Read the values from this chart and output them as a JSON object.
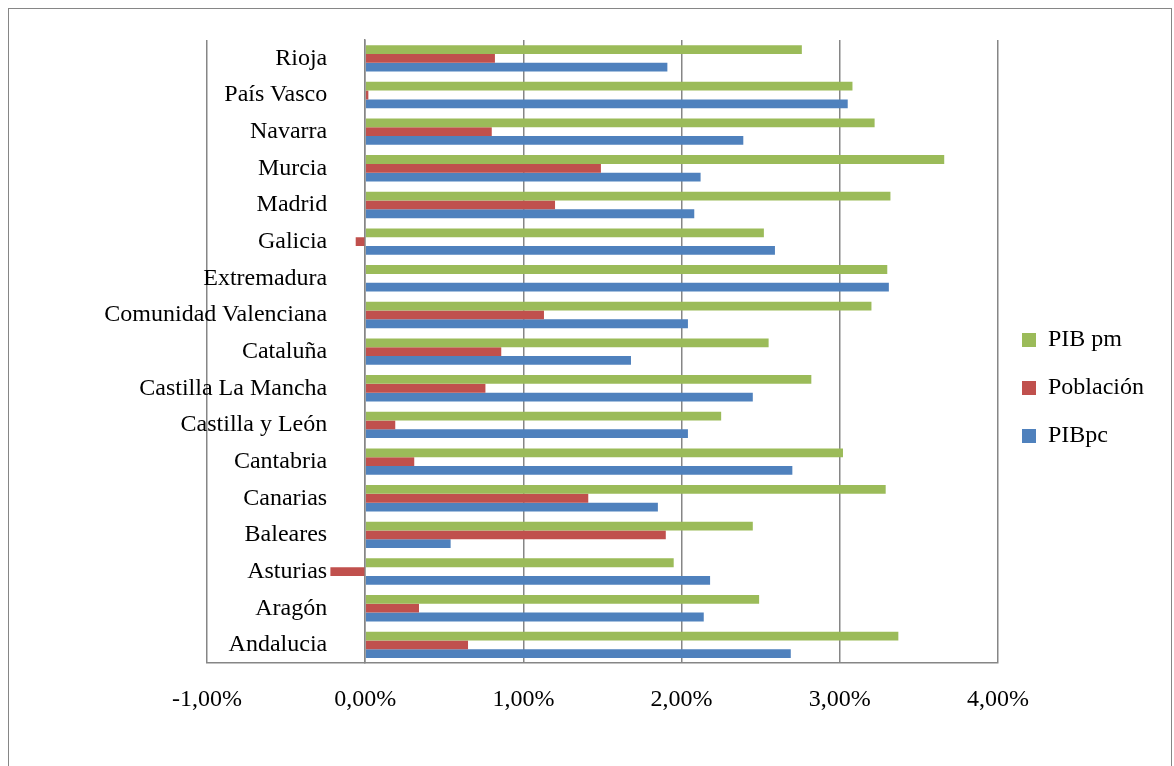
{
  "chart_data": {
    "type": "bar",
    "orientation": "horizontal",
    "categories": [
      "Rioja",
      "País Vasco",
      "Navarra",
      "Murcia",
      "Madrid",
      "Galicia",
      "Extremadura",
      "Comunidad Valenciana",
      "Cataluña",
      "Castilla La Mancha",
      "Castilla y León",
      "Cantabria",
      "Canarias",
      "Baleares",
      "Asturias",
      "Aragón",
      "Andalucia"
    ],
    "series": [
      {
        "name": "PIB pm",
        "color": "#9bbb59",
        "values": [
          2.76,
          3.08,
          3.22,
          3.66,
          3.32,
          2.52,
          3.3,
          3.2,
          2.55,
          2.82,
          2.25,
          3.02,
          3.29,
          2.45,
          1.95,
          2.49,
          3.37
        ]
      },
      {
        "name": "Población",
        "color": "#c0504d",
        "values": [
          0.82,
          0.02,
          0.8,
          1.49,
          1.2,
          -0.06,
          0,
          1.13,
          0.86,
          0.76,
          0.19,
          0.31,
          1.41,
          1.9,
          -0.22,
          0.34,
          0.65
        ]
      },
      {
        "name": "PIBpc",
        "color": "#4f81bd",
        "values": [
          1.91,
          3.05,
          2.39,
          2.12,
          2.08,
          2.59,
          3.31,
          2.04,
          1.68,
          2.45,
          2.04,
          2.7,
          1.85,
          0.54,
          2.18,
          2.14,
          2.69
        ]
      }
    ],
    "xlim": [
      -1,
      4
    ],
    "xticks": [
      {
        "value": -1,
        "label": "-1,00%"
      },
      {
        "value": 0,
        "label": "0,00%"
      },
      {
        "value": 1,
        "label": "1,00%"
      },
      {
        "value": 2,
        "label": "2,00%"
      },
      {
        "value": 3,
        "label": "3,00%"
      },
      {
        "value": 4,
        "label": "4,00%"
      }
    ],
    "grid": "x",
    "legend": "right"
  }
}
